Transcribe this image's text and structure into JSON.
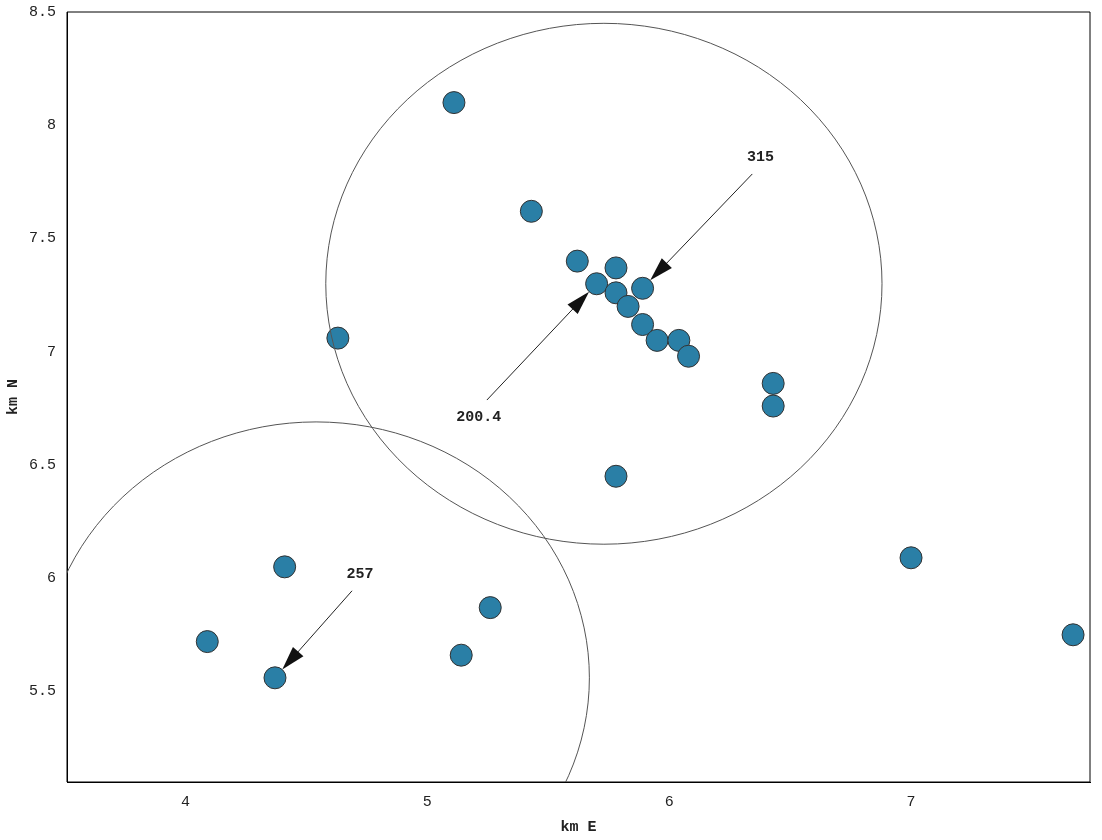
{
  "chart_data": {
    "type": "scatter",
    "xlabel": "km E",
    "ylabel": "km N",
    "x": [
      5.11,
      5.43,
      5.62,
      5.78,
      5.7,
      5.78,
      5.89,
      5.83,
      5.89,
      5.95,
      6.04,
      6.08,
      4.63,
      6.43,
      6.43,
      5.78,
      4.41,
      7.0,
      5.26,
      4.09,
      4.37,
      5.14,
      7.67
    ],
    "series": [
      {
        "color": "#2a7fa6",
        "values": [
          8.1,
          7.62,
          7.4,
          7.37,
          7.3,
          7.26,
          7.28,
          7.2,
          7.12,
          7.05,
          7.05,
          6.98,
          7.06,
          6.86,
          6.76,
          6.45,
          6.05,
          6.09,
          5.87,
          5.72,
          5.56,
          5.66,
          5.75
        ]
      }
    ],
    "xlim": [
      3.51,
      7.74
    ],
    "ylim": [
      5.1,
      8.5
    ],
    "xticks": [
      4,
      5,
      6,
      7
    ],
    "yticks": [
      5.5,
      6,
      6.5,
      7,
      7.5,
      8,
      8.5
    ],
    "grid": false,
    "legend": false,
    "marker": "circle",
    "annotations": [
      "315",
      "200.4",
      "257"
    ]
  }
}
